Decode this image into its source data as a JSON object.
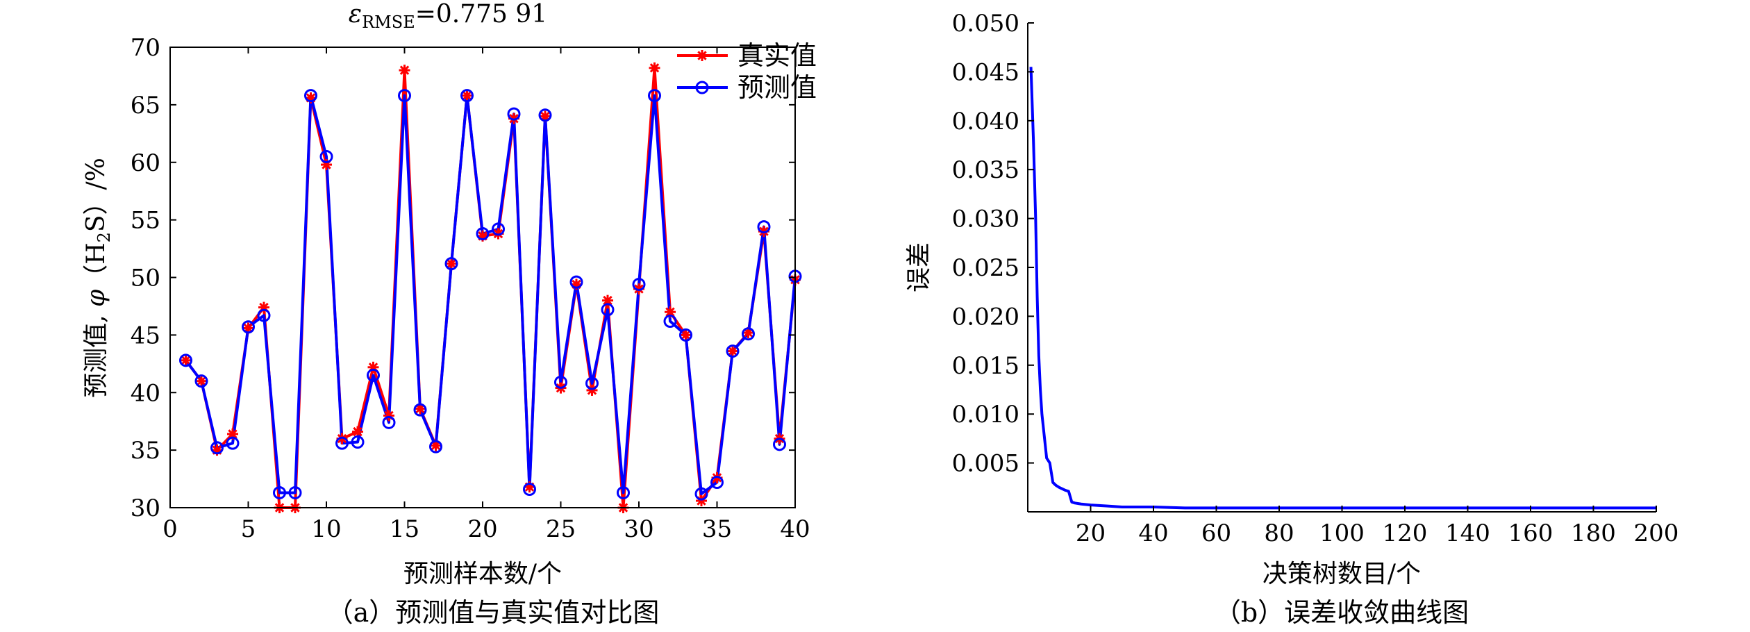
{
  "chart_data": [
    {
      "type": "line",
      "title_prefix": "ε",
      "title_sub": "RMSE",
      "title_value": "=0.775 91",
      "caption": "（a）预测值与真实值对比图",
      "xlabel": "预测样本数/个",
      "ylabel_parts": [
        "预测值, ",
        "φ",
        "（H",
        "2",
        "S）/%"
      ],
      "xlim": [
        0,
        40
      ],
      "ylim": [
        30,
        70
      ],
      "xticks": [
        0,
        5,
        10,
        15,
        20,
        25,
        30,
        35,
        40
      ],
      "yticks": [
        30,
        35,
        40,
        45,
        50,
        55,
        60,
        65,
        70
      ],
      "legend_position": "top-right",
      "x": [
        1,
        2,
        3,
        4,
        5,
        6,
        7,
        8,
        9,
        10,
        11,
        12,
        13,
        14,
        15,
        16,
        17,
        18,
        19,
        20,
        21,
        22,
        23,
        24,
        25,
        26,
        27,
        28,
        29,
        30,
        31,
        32,
        33,
        34,
        35,
        36,
        37,
        38,
        39,
        40
      ],
      "series": [
        {
          "name": "真实值",
          "color": "#ff0000",
          "marker": "asterisk",
          "values": [
            42.8,
            41.0,
            35.0,
            36.4,
            45.6,
            47.4,
            30.0,
            30.0,
            65.6,
            59.8,
            36.0,
            36.6,
            42.2,
            38.0,
            68.0,
            38.6,
            35.4,
            51.2,
            65.8,
            53.6,
            53.8,
            63.8,
            31.8,
            64.0,
            40.4,
            49.4,
            40.2,
            48.0,
            30.0,
            49.0,
            68.2,
            47.0,
            45.0,
            30.6,
            32.6,
            43.6,
            45.2,
            54.0,
            36.0,
            49.8
          ]
        },
        {
          "name": "预测值",
          "color": "#0000ff",
          "marker": "circle",
          "values": [
            42.8,
            41.0,
            35.2,
            35.6,
            45.7,
            46.7,
            31.3,
            31.3,
            65.8,
            60.5,
            35.6,
            35.7,
            41.5,
            37.4,
            65.8,
            38.5,
            35.3,
            51.2,
            65.8,
            53.8,
            54.2,
            64.2,
            31.6,
            64.1,
            40.9,
            49.6,
            40.8,
            47.2,
            31.3,
            49.4,
            65.8,
            46.2,
            45.0,
            31.2,
            32.2,
            43.6,
            45.1,
            54.4,
            35.5,
            50.1
          ]
        }
      ]
    },
    {
      "type": "line",
      "caption": "（b）误差收敛曲线图",
      "xlabel": "决策树数目/个",
      "ylabel": "误差",
      "xlim": [
        0,
        200
      ],
      "ylim": [
        0,
        0.05
      ],
      "xticks": [
        20,
        40,
        60,
        80,
        100,
        120,
        140,
        160,
        180,
        200
      ],
      "yticks": [
        0.005,
        0.01,
        0.015,
        0.02,
        0.025,
        0.03,
        0.035,
        0.04,
        0.045,
        0.05
      ],
      "ytick_labels": [
        "0.005",
        "0.010",
        "0.015",
        "0.020",
        "0.025",
        "0.030",
        "0.035",
        "0.040",
        "0.045",
        "0.050"
      ],
      "series": [
        {
          "color": "#0000ff",
          "x": [
            1,
            1.8,
            2.5,
            3,
            3.5,
            4,
            4.5,
            5,
            6,
            7,
            7.5,
            8,
            9,
            10,
            12,
            13,
            14,
            15,
            17,
            20,
            25,
            30,
            40,
            50,
            60,
            80,
            100,
            120,
            140,
            160,
            180,
            200
          ],
          "y": [
            0.0455,
            0.038,
            0.03,
            0.022,
            0.016,
            0.0125,
            0.01,
            0.0085,
            0.0055,
            0.005,
            0.004,
            0.003,
            0.0027,
            0.0025,
            0.0022,
            0.0021,
            0.001,
            0.0009,
            0.0008,
            0.0007,
            0.0006,
            0.0005,
            0.0005,
            0.0004,
            0.0004,
            0.0004,
            0.0004,
            0.0004,
            0.0004,
            0.0004,
            0.0004,
            0.0004
          ]
        }
      ]
    }
  ]
}
